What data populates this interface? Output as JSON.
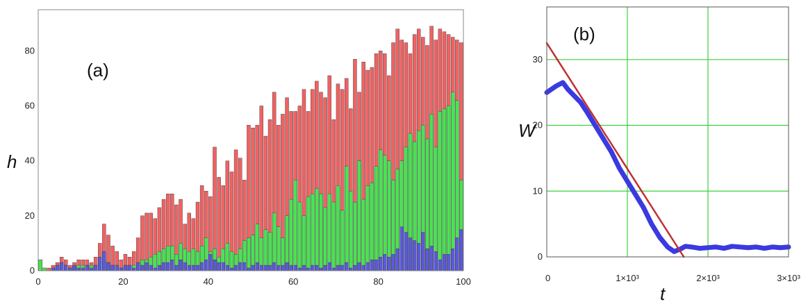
{
  "chart_data": [
    {
      "type": "bar",
      "panel_label": "(a)",
      "ylabel": "h",
      "xlim": [
        0,
        100
      ],
      "ylim": [
        0,
        95
      ],
      "x_ticks": [
        "0",
        "20",
        "40",
        "60",
        "80",
        "100"
      ],
      "y_ticks": [
        "0",
        "20",
        "40",
        "60",
        "80"
      ],
      "grid": false,
      "series": [
        {
          "color": "#f06262",
          "values": [
            4,
            1,
            1,
            2,
            3,
            5,
            4,
            2,
            3,
            4,
            4,
            4,
            3,
            5,
            10,
            17,
            13,
            9,
            7,
            4,
            6,
            5,
            7,
            12,
            20,
            21,
            21,
            19,
            23,
            26,
            28,
            28,
            24,
            26,
            17,
            21,
            19,
            25,
            31,
            29,
            27,
            45,
            34,
            31,
            40,
            36,
            44,
            41,
            33,
            53,
            52,
            53,
            60,
            49,
            55,
            65,
            53,
            57,
            63,
            58,
            58,
            60,
            66,
            58,
            66,
            69,
            65,
            63,
            71,
            55,
            68,
            66,
            70,
            59,
            77,
            65,
            76,
            73,
            74,
            79,
            80,
            79,
            71,
            83,
            88,
            84,
            83,
            79,
            86,
            88,
            85,
            82,
            89,
            84,
            88,
            87,
            86,
            85,
            84,
            83
          ]
        },
        {
          "color": "#49e351",
          "values": [
            4,
            1,
            0,
            1,
            2,
            3,
            2,
            1,
            2,
            2,
            2,
            2,
            2,
            2,
            3,
            4,
            3,
            2,
            2,
            1,
            2,
            2,
            2,
            3,
            4,
            4,
            5,
            6,
            7,
            8,
            9,
            9,
            6,
            10,
            8,
            7,
            8,
            7,
            9,
            12,
            7,
            8,
            5,
            8,
            10,
            7,
            6,
            8,
            11,
            12,
            13,
            17,
            12,
            15,
            14,
            21,
            16,
            12,
            20,
            26,
            33,
            25,
            20,
            27,
            28,
            30,
            28,
            23,
            28,
            25,
            31,
            22,
            38,
            29,
            25,
            40,
            26,
            31,
            32,
            38,
            44,
            42,
            40,
            33,
            37,
            40,
            45,
            50,
            47,
            51,
            53,
            48,
            57,
            45,
            58,
            59,
            60,
            65,
            62,
            33
          ]
        },
        {
          "color": "#5a5ad8",
          "values": [
            0,
            0,
            0,
            1,
            2,
            3,
            2,
            1,
            2,
            1,
            1,
            2,
            1,
            2,
            5,
            7,
            3,
            2,
            2,
            1,
            2,
            2,
            1,
            3,
            2,
            3,
            2,
            1,
            2,
            3,
            3,
            4,
            2,
            4,
            3,
            2,
            2,
            2,
            3,
            4,
            6,
            4,
            3,
            3,
            2,
            1,
            2,
            3,
            3,
            1,
            2,
            3,
            2,
            2,
            2,
            3,
            2,
            2,
            3,
            2,
            2,
            1,
            2,
            1,
            2,
            2,
            1,
            2,
            3,
            1,
            2,
            2,
            3,
            1,
            2,
            3,
            2,
            3,
            4,
            4,
            5,
            6,
            5,
            6,
            8,
            16,
            14,
            12,
            11,
            10,
            14,
            8,
            9,
            7,
            4,
            6,
            6,
            8,
            12,
            15
          ]
        }
      ]
    },
    {
      "type": "line",
      "panel_label": "(b)",
      "xlabel": "t",
      "ylabel": "W",
      "xlim": [
        0,
        3000
      ],
      "ylim": [
        0,
        38
      ],
      "x_ticks": [
        "0",
        "1×10³",
        "2×10³",
        "3×10³"
      ],
      "y_ticks": [
        "0",
        "10",
        "20",
        "30"
      ],
      "grid": true,
      "grid_color": "#3bcf3b",
      "series": [
        {
          "color": "#3a3ae0",
          "x": [
            0,
            60,
            120,
            200,
            260,
            340,
            420,
            500,
            600,
            700,
            800,
            900,
            1000,
            1100,
            1200,
            1300,
            1400,
            1500,
            1580,
            1660,
            1720,
            1800,
            1900,
            2000,
            2100,
            2200,
            2300,
            2400,
            2500,
            2600,
            2700,
            2800,
            2900,
            3000
          ],
          "y": [
            25,
            25.5,
            26,
            26.5,
            25.5,
            24.5,
            23.5,
            22,
            20,
            18,
            16,
            13.5,
            11.5,
            9.5,
            7.5,
            5,
            3,
            1.5,
            0.8,
            1.2,
            1.6,
            1.5,
            1.3,
            1.4,
            1.5,
            1.3,
            1.6,
            1.5,
            1.4,
            1.5,
            1.3,
            1.5,
            1.4,
            1.5
          ]
        },
        {
          "color": "#c03030",
          "x": [
            0,
            1700
          ],
          "y": [
            32.5,
            0
          ]
        }
      ]
    }
  ]
}
